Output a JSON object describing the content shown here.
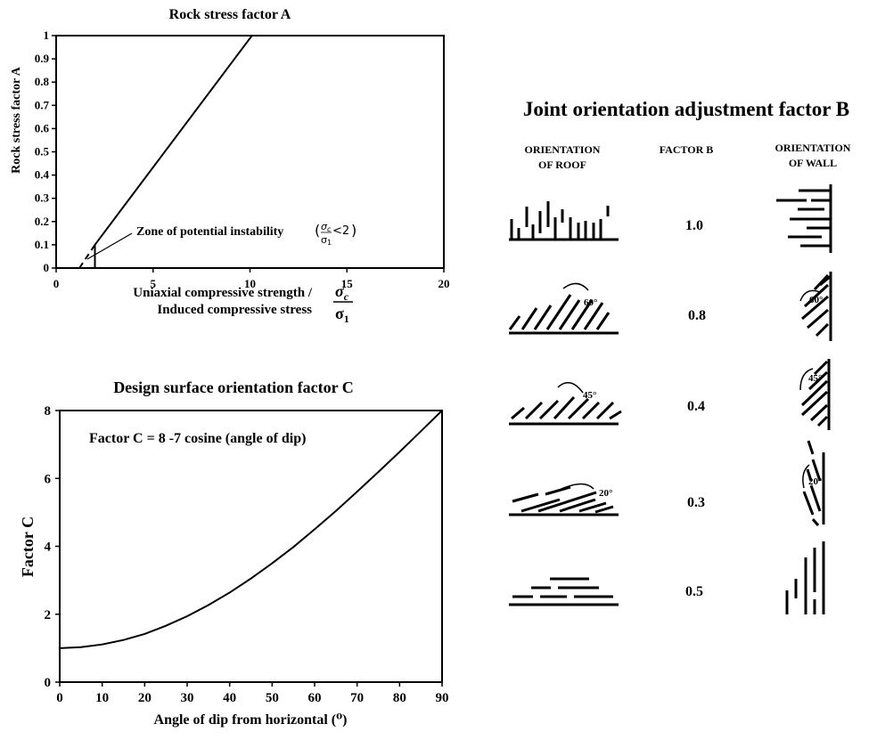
{
  "chart_data": [
    {
      "type": "line",
      "title": "Rock stress factor A",
      "ylabel": "Rock stress factor A",
      "xlabel_line1": "Uniaxial compressive strength /",
      "xlabel_line2": "Induced compressive stress",
      "x_ratio_num": "σ",
      "x_ratio_num_sub": "c",
      "x_ratio_den": "σ",
      "x_ratio_den_sub": "1",
      "xlim": [
        0,
        20
      ],
      "ylim": [
        0,
        1
      ],
      "xticks": [
        "0",
        "5",
        "10",
        "15",
        "20"
      ],
      "yticks": [
        "0",
        "0.1",
        "0.2",
        "0.3",
        "0.4",
        "0.5",
        "0.6",
        "0.7",
        "0.8",
        "0.9",
        "1"
      ],
      "series": [
        {
          "style": "solid",
          "x": [
            2,
            2,
            10.1
          ],
          "y": [
            0,
            0.1,
            1.0
          ]
        },
        {
          "style": "dashed",
          "x": [
            1.2,
            2
          ],
          "y": [
            0,
            0.1
          ]
        }
      ],
      "annotation": "Zone of potential instability",
      "annotation_cond_num": "σ",
      "annotation_cond_num_sub": "c",
      "annotation_cond_den": "σ",
      "annotation_cond_den_sub": "1",
      "annotation_cond_rel": "<2",
      "annotation_open": "(",
      "annotation_close": ")"
    },
    {
      "type": "line",
      "title": "Design surface orientation factor C",
      "ylabel": "Factor C",
      "xlabel": "Angle of dip from horizontal (⁰)",
      "formula": "Factor C = 8 -7 cosine (angle of dip)",
      "xlim": [
        0,
        90
      ],
      "ylim": [
        0,
        8
      ],
      "xticks": [
        "0",
        "10",
        "20",
        "30",
        "40",
        "50",
        "60",
        "70",
        "80",
        "90"
      ],
      "yticks": [
        "0",
        "2",
        "4",
        "6",
        "8"
      ],
      "series": [
        {
          "style": "solid",
          "x": [
            0,
            5,
            10,
            15,
            20,
            25,
            30,
            35,
            40,
            45,
            50,
            55,
            60,
            65,
            70,
            75,
            80,
            85,
            90
          ],
          "y": [
            1.0,
            1.03,
            1.11,
            1.24,
            1.42,
            1.66,
            1.94,
            2.27,
            2.64,
            3.05,
            3.5,
            3.98,
            4.5,
            5.04,
            5.61,
            6.19,
            6.78,
            7.39,
            8.0
          ]
        }
      ]
    }
  ],
  "joint_table": {
    "title": "Joint orientation adjustment factor B",
    "col_roof": [
      "ORIENTATION",
      "OF ROOF"
    ],
    "col_factor": "FACTOR B",
    "col_wall": [
      "ORIENTATION",
      "OF WALL"
    ],
    "rows": [
      {
        "factor": "1.0",
        "roof_angle": "",
        "wall_angle": ""
      },
      {
        "factor": "0.8",
        "roof_angle": "60°",
        "wall_angle": "60°"
      },
      {
        "factor": "0.4",
        "roof_angle": "45°",
        "wall_angle": "45°"
      },
      {
        "factor": "0.3",
        "roof_angle": "20°",
        "wall_angle": "20°"
      },
      {
        "factor": "0.5",
        "roof_angle": "",
        "wall_angle": ""
      }
    ]
  }
}
